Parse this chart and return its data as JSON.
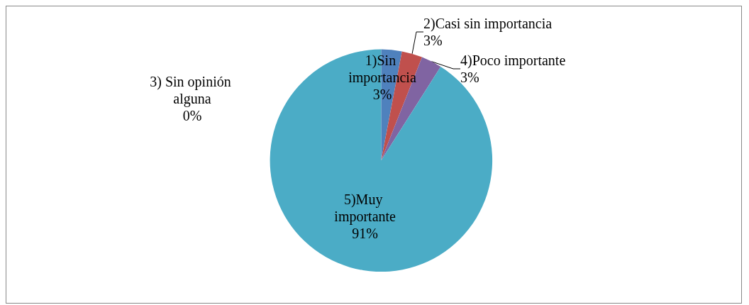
{
  "chart_data": {
    "type": "pie",
    "categories": [
      "1)Sin importancia",
      "2)Casi sin importancia",
      "3) Sin opinión alguna",
      "4)Poco importante",
      "5)Muy importante"
    ],
    "values": [
      3,
      3,
      0,
      3,
      91
    ],
    "colors": [
      "#4f81bd",
      "#c0504d",
      "#9bbb59",
      "#8064a2",
      "#4bacc6"
    ],
    "value_labels": [
      "3%",
      "3%",
      "0%",
      "3%",
      "91%"
    ],
    "legend": false
  }
}
